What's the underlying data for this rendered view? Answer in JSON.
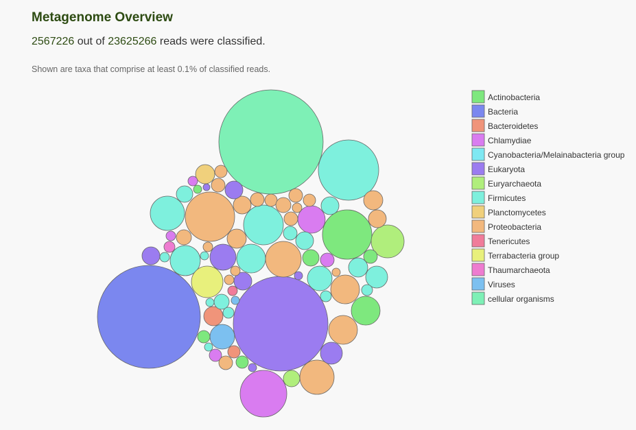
{
  "header": {
    "title": "Metagenome Overview",
    "classified_count": "2567226",
    "out_of_text": "out of",
    "total_count": "23625266",
    "reads_text": "reads were classified.",
    "note": "Shown are taxa that comprise at least 0.1% of classified reads."
  },
  "chart_data": {
    "type": "bubble",
    "title": "",
    "legend_position": "right",
    "categories": [
      {
        "name": "Actinobacteria",
        "color": "#7ee87e"
      },
      {
        "name": "Bacteria",
        "color": "#7b87ef"
      },
      {
        "name": "Bacteroidetes",
        "color": "#f0947a"
      },
      {
        "name": "Chlamydiae",
        "color": "#d97cf0"
      },
      {
        "name": "Cyanobacteria/Melainabacteria group",
        "color": "#7ee8f2"
      },
      {
        "name": "Eukaryota",
        "color": "#9b7cf0"
      },
      {
        "name": "Euryarchaeota",
        "color": "#b0ee7c"
      },
      {
        "name": "Firmicutes",
        "color": "#7ef0dd"
      },
      {
        "name": "Planctomycetes",
        "color": "#f0d07c"
      },
      {
        "name": "Proteobacteria",
        "color": "#f2b87e"
      },
      {
        "name": "Tenericutes",
        "color": "#f07c9a"
      },
      {
        "name": "Terrabacteria group",
        "color": "#e8f07c"
      },
      {
        "name": "Thaumarchaeota",
        "color": "#ee7cd0"
      },
      {
        "name": "Viruses",
        "color": "#7cc0f0"
      },
      {
        "name": "cellular organisms",
        "color": "#7ef0b6"
      }
    ]
  }
}
